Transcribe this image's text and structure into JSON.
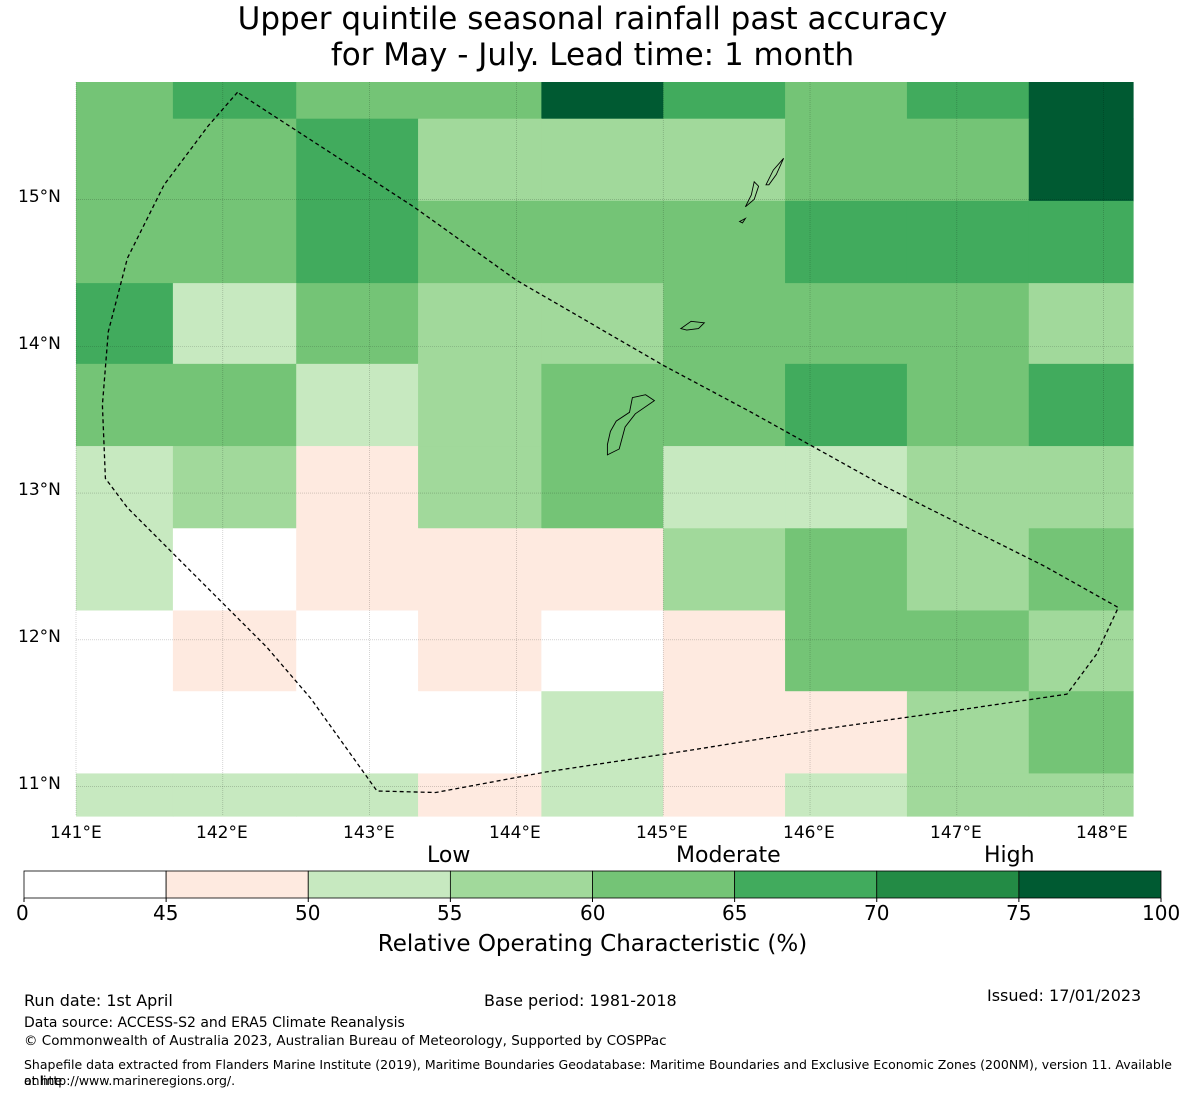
{
  "title": {
    "line1": "Upper quintile seasonal rainfall past accuracy",
    "line2": "for May - July. Lead time: 1 month"
  },
  "map": {
    "lon_range": [
      141.0,
      148.2
    ],
    "lat_range": [
      10.8,
      15.8
    ],
    "lat_labels": [
      "15°N",
      "14°N",
      "13°N",
      "12°N",
      "11°N"
    ],
    "lon_labels": [
      "141°E",
      "142°E",
      "143°E",
      "144°E",
      "145°E",
      "146°E",
      "147°E",
      "148°E"
    ],
    "grid_lon_edges": [
      141.0,
      141.66,
      142.5,
      143.33,
      144.17,
      145.0,
      145.83,
      146.66,
      147.49,
      148.2
    ],
    "grid_lat_edges": [
      15.8,
      15.55,
      14.99,
      14.43,
      13.88,
      13.32,
      12.76,
      12.2,
      11.65,
      11.09,
      10.8
    ],
    "roc_grid": [
      [
        62,
        67,
        62,
        62,
        80,
        67,
        62,
        67,
        80
      ],
      [
        62,
        62,
        67,
        57,
        57,
        57,
        62,
        62,
        80
      ],
      [
        62,
        62,
        67,
        62,
        62,
        62,
        67,
        67,
        67
      ],
      [
        67,
        52,
        62,
        57,
        57,
        62,
        62,
        62,
        57
      ],
      [
        62,
        62,
        52,
        57,
        62,
        62,
        67,
        62,
        67
      ],
      [
        52,
        57,
        47,
        57,
        62,
        52,
        52,
        57,
        57
      ],
      [
        52,
        10,
        47,
        47,
        47,
        57,
        62,
        57,
        62
      ],
      [
        10,
        47,
        10,
        47,
        10,
        47,
        62,
        62,
        57
      ],
      [
        10,
        10,
        10,
        10,
        52,
        47,
        47,
        57,
        62
      ],
      [
        52,
        52,
        52,
        47,
        52,
        47,
        52,
        57,
        57
      ]
    ],
    "boundary": [
      [
        142.1,
        15.73
      ],
      [
        141.9,
        15.5
      ],
      [
        141.6,
        15.1
      ],
      [
        141.35,
        14.6
      ],
      [
        141.22,
        14.1
      ],
      [
        141.18,
        13.6
      ],
      [
        141.2,
        13.1
      ],
      [
        141.35,
        12.9
      ],
      [
        141.8,
        12.45
      ],
      [
        142.3,
        11.95
      ],
      [
        142.6,
        11.6
      ],
      [
        142.85,
        11.25
      ],
      [
        143.05,
        10.97
      ],
      [
        143.45,
        10.96
      ],
      [
        144.2,
        11.1
      ],
      [
        145.2,
        11.25
      ],
      [
        146.0,
        11.38
      ],
      [
        147.0,
        11.52
      ],
      [
        147.75,
        11.63
      ],
      [
        147.95,
        11.9
      ],
      [
        148.1,
        12.22
      ],
      [
        147.6,
        12.5
      ],
      [
        147.2,
        12.7
      ],
      [
        146.5,
        13.05
      ],
      [
        145.6,
        13.55
      ],
      [
        145.0,
        13.87
      ],
      [
        144.0,
        14.45
      ],
      [
        143.3,
        14.95
      ],
      [
        142.1,
        15.73
      ]
    ],
    "islands": [
      [
        [
          144.62,
          13.26
        ],
        [
          144.7,
          13.3
        ],
        [
          144.74,
          13.45
        ],
        [
          144.81,
          13.54
        ],
        [
          144.94,
          13.63
        ],
        [
          144.88,
          13.67
        ],
        [
          144.79,
          13.65
        ],
        [
          144.77,
          13.55
        ],
        [
          144.68,
          13.49
        ],
        [
          144.64,
          13.42
        ],
        [
          144.62,
          13.33
        ],
        [
          144.62,
          13.26
        ]
      ],
      [
        [
          145.12,
          14.12
        ],
        [
          145.19,
          14.17
        ],
        [
          145.28,
          14.16
        ],
        [
          145.24,
          14.12
        ],
        [
          145.16,
          14.11
        ],
        [
          145.12,
          14.12
        ]
      ],
      [
        [
          145.56,
          14.95
        ],
        [
          145.6,
          15.03
        ],
        [
          145.62,
          15.12
        ],
        [
          145.65,
          15.09
        ],
        [
          145.62,
          15.0
        ],
        [
          145.56,
          14.95
        ]
      ],
      [
        [
          145.7,
          15.1
        ],
        [
          145.75,
          15.2
        ],
        [
          145.82,
          15.28
        ],
        [
          145.77,
          15.17
        ],
        [
          145.72,
          15.1
        ],
        [
          145.7,
          15.1
        ]
      ],
      [
        [
          145.52,
          14.85
        ],
        [
          145.56,
          14.87
        ],
        [
          145.54,
          14.84
        ],
        [
          145.52,
          14.85
        ]
      ]
    ]
  },
  "colorbar": {
    "ticks": [
      "0",
      "45",
      "50",
      "55",
      "60",
      "65",
      "70",
      "75",
      "100"
    ],
    "categories": [
      "Low",
      "Moderate",
      "High"
    ],
    "label": "Relative Operating Characteristic (%)",
    "colors": [
      "#ffffff",
      "#feeae0",
      "#c7e9c0",
      "#a1d99b",
      "#74c476",
      "#41ab5d",
      "#238b45",
      "#005a32"
    ],
    "bounds": [
      0,
      45,
      50,
      55,
      60,
      65,
      70,
      75,
      100
    ]
  },
  "footer": {
    "run_date": "Run date: 1st April",
    "base_period": "Base period: 1981-2018",
    "issued": "Issued: 17/01/2023",
    "data_source": "Data source: ACCESS-S2 and ERA5 Climate Reanalysis",
    "copyright": "© Commonwealth of Australia 2023, Australian Bureau of Meteorology, Supported by COSPPac",
    "shapefile_line1": "Shapefile data extracted from Flanders Marine Institute (2019), Maritime Boundaries Geodatabase: Maritime Boundaries and Exclusive Economic Zones (200NM), version 11. Available online",
    "shapefile_line2": "at http://www.marineregions.org/."
  }
}
